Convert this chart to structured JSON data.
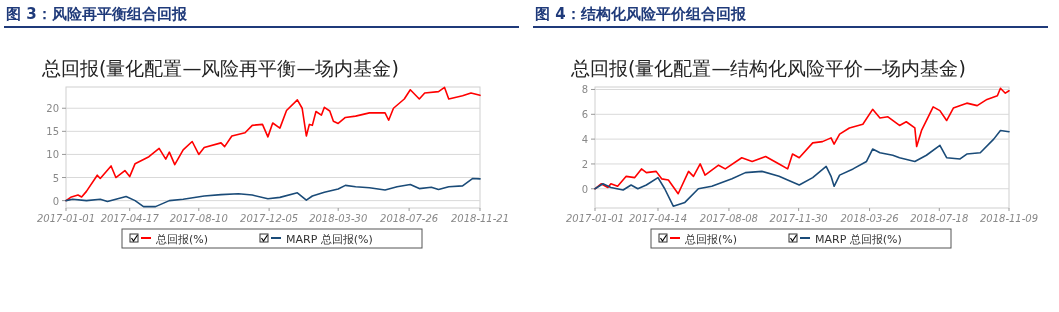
{
  "chart_data": [
    {
      "type": "line",
      "title": "图 3：风险再平衡组合回报",
      "subtitle": "总回报(量化配置—风险再平衡—场内基金)",
      "xlim": [
        "2017-01-01",
        "2018-11-21"
      ],
      "xticks": [
        "2017-01-01",
        "2017-04-17",
        "2017-08-10",
        "2017-12-05",
        "2018-03-30",
        "2018-07-26",
        "2018-11-21"
      ],
      "ylim": [
        -1.6,
        24.6
      ],
      "yticks": [
        0,
        5,
        10,
        15,
        20
      ],
      "grid": "y",
      "legend": "bottom",
      "series": [
        {
          "name": "总回报(%)",
          "color": "#ff0000",
          "x": [
            "2017-01-01",
            "2017-01-10",
            "2017-01-21",
            "2017-01-27",
            "2017-02-04",
            "2017-02-22",
            "2017-02-27",
            "2017-03-17",
            "2017-03-25",
            "2017-04-09",
            "2017-04-17",
            "2017-04-26",
            "2017-05-19",
            "2017-06-05",
            "2017-06-16",
            "2017-06-22",
            "2017-07-01",
            "2017-07-15",
            "2017-07-30",
            "2017-08-10",
            "2017-08-19",
            "2017-09-16",
            "2017-09-22",
            "2017-10-04",
            "2017-10-26",
            "2017-11-07",
            "2017-11-24",
            "2017-12-03",
            "2017-12-11",
            "2017-12-23",
            "2018-01-03",
            "2018-01-21",
            "2018-01-29",
            "2018-02-05",
            "2018-02-10",
            "2018-02-15",
            "2018-02-21",
            "2018-03-02",
            "2018-03-07",
            "2018-03-16",
            "2018-03-22",
            "2018-03-30",
            "2018-04-11",
            "2018-04-28",
            "2018-05-21",
            "2018-06-16",
            "2018-06-22",
            "2018-06-30",
            "2018-07-18",
            "2018-07-28",
            "2018-08-12",
            "2018-08-21",
            "2018-09-13",
            "2018-09-23",
            "2018-09-30",
            "2018-10-23",
            "2018-11-06",
            "2018-11-21"
          ],
          "values": [
            0,
            0.8,
            1.2,
            0.8,
            2,
            5.5,
            4.8,
            7.5,
            5,
            6.5,
            5.2,
            8,
            9.5,
            11.3,
            9,
            10.5,
            7.8,
            11,
            12.8,
            10,
            11.5,
            12.5,
            11.7,
            14,
            14.7,
            16.3,
            16.5,
            13.8,
            16.8,
            15.7,
            19.5,
            21.8,
            20,
            14,
            16.5,
            16.3,
            19.3,
            18.5,
            20.2,
            19.4,
            17.2,
            16.7,
            18,
            18.3,
            19,
            19,
            17.4,
            20,
            22,
            24,
            22,
            23.3,
            23.6,
            24.5,
            22,
            22.7,
            23.3,
            22.8
          ]
        },
        {
          "name": "MARP 总回报(%)",
          "color": "#1a4b78",
          "x": [
            "2017-01-01",
            "2017-01-12",
            "2017-02-04",
            "2017-02-27",
            "2017-03-11",
            "2017-03-25",
            "2017-04-11",
            "2017-04-26",
            "2017-05-10",
            "2017-05-30",
            "2017-06-22",
            "2017-07-15",
            "2017-08-19",
            "2017-09-16",
            "2017-10-15",
            "2017-11-07",
            "2017-12-03",
            "2017-12-23",
            "2018-01-21",
            "2018-02-05",
            "2018-02-15",
            "2018-03-07",
            "2018-03-30",
            "2018-04-11",
            "2018-04-28",
            "2018-05-21",
            "2018-06-16",
            "2018-07-06",
            "2018-07-28",
            "2018-08-12",
            "2018-09-01",
            "2018-09-13",
            "2018-09-30",
            "2018-10-23",
            "2018-11-09",
            "2018-11-21"
          ],
          "values": [
            0,
            0.3,
            0,
            0.3,
            -0.2,
            0.3,
            0.9,
            0,
            -1.3,
            -1.3,
            0,
            0.3,
            1,
            1.3,
            1.5,
            1.2,
            0.4,
            0.7,
            1.7,
            0.1,
            1,
            1.8,
            2.5,
            3.3,
            3,
            2.8,
            2.3,
            3,
            3.5,
            2.6,
            2.9,
            2.4,
            3,
            3.2,
            4.8,
            4.7
          ]
        }
      ]
    },
    {
      "type": "line",
      "title": "图 4：结构化风险平价组合回报",
      "subtitle": "总回报(量化配置—结构化风险平价—场内基金)",
      "xlim": [
        "2017-01-01",
        "2018-11-09"
      ],
      "xticks": [
        "2017-01-01",
        "2017-04-14",
        "2017-08-08",
        "2017-11-30",
        "2018-03-26",
        "2018-07-18",
        "2018-11-09"
      ],
      "ylim": [
        -1.55,
        8.2
      ],
      "yticks": [
        0,
        2,
        4,
        6,
        8
      ],
      "grid": "y",
      "legend": "bottom",
      "series": [
        {
          "name": "总回报(%)",
          "color": "#ff0000",
          "x": [
            "2017-01-01",
            "2017-01-11",
            "2017-01-22",
            "2017-01-27",
            "2017-02-07",
            "2017-02-21",
            "2017-03-07",
            "2017-03-18",
            "2017-03-26",
            "2017-04-11",
            "2017-04-20",
            "2017-05-01",
            "2017-05-17",
            "2017-06-03",
            "2017-06-11",
            "2017-06-22",
            "2017-06-30",
            "2017-07-22",
            "2017-08-02",
            "2017-08-29",
            "2017-09-15",
            "2017-10-07",
            "2017-10-29",
            "2017-11-12",
            "2017-11-20",
            "2017-12-01",
            "2017-12-23",
            "2018-01-08",
            "2018-01-22",
            "2018-01-27",
            "2018-02-05",
            "2018-02-21",
            "2018-03-15",
            "2018-03-31",
            "2018-04-12",
            "2018-04-25",
            "2018-05-14",
            "2018-05-25",
            "2018-06-08",
            "2018-06-11",
            "2018-06-19",
            "2018-07-08",
            "2018-07-19",
            "2018-07-30",
            "2018-08-10",
            "2018-09-01",
            "2018-09-18",
            "2018-10-04",
            "2018-10-21",
            "2018-10-26",
            "2018-11-03",
            "2018-11-09"
          ],
          "values": [
            0,
            0.4,
            0.1,
            0.4,
            0.2,
            1,
            0.9,
            1.6,
            1.3,
            1.4,
            0.8,
            0.7,
            -0.4,
            1.4,
            1,
            2,
            1.1,
            1.9,
            1.6,
            2.5,
            2.2,
            2.6,
            2,
            1.6,
            2.8,
            2.5,
            3.7,
            3.8,
            4.1,
            3.6,
            4.4,
            4.9,
            5.2,
            6.4,
            5.7,
            5.8,
            5.1,
            5.4,
            4.9,
            3.4,
            4.7,
            6.6,
            6.3,
            5.5,
            6.5,
            6.9,
            6.7,
            7.2,
            7.5,
            8.1,
            7.7,
            7.9
          ]
        },
        {
          "name": "MARP 总回报(%)",
          "color": "#1a4b78",
          "x": [
            "2017-01-01",
            "2017-01-14",
            "2017-01-27",
            "2017-02-16",
            "2017-03-01",
            "2017-03-12",
            "2017-03-26",
            "2017-04-14",
            "2017-04-25",
            "2017-05-09",
            "2017-05-28",
            "2017-06-19",
            "2017-07-11",
            "2017-08-13",
            "2017-09-04",
            "2017-10-01",
            "2017-10-29",
            "2017-11-12",
            "2017-12-01",
            "2017-12-23",
            "2018-01-14",
            "2018-01-22",
            "2018-01-27",
            "2018-02-05",
            "2018-02-27",
            "2018-03-21",
            "2018-03-31",
            "2018-04-12",
            "2018-05-03",
            "2018-05-14",
            "2018-06-08",
            "2018-06-27",
            "2018-07-19",
            "2018-07-30",
            "2018-08-21",
            "2018-09-01",
            "2018-09-23",
            "2018-10-15",
            "2018-10-26",
            "2018-11-09"
          ],
          "values": [
            0,
            0.4,
            0.1,
            -0.1,
            0.3,
            0,
            0.3,
            0.9,
            0,
            -1.4,
            -1.1,
            0,
            0.2,
            0.8,
            1.3,
            1.4,
            1,
            0.7,
            0.3,
            0.9,
            1.8,
            1,
            0.2,
            1.1,
            1.6,
            2.2,
            3.2,
            2.9,
            2.7,
            2.5,
            2.2,
            2.7,
            3.5,
            2.5,
            2.4,
            2.8,
            2.9,
            4,
            4.7,
            4.6
          ]
        }
      ]
    }
  ]
}
